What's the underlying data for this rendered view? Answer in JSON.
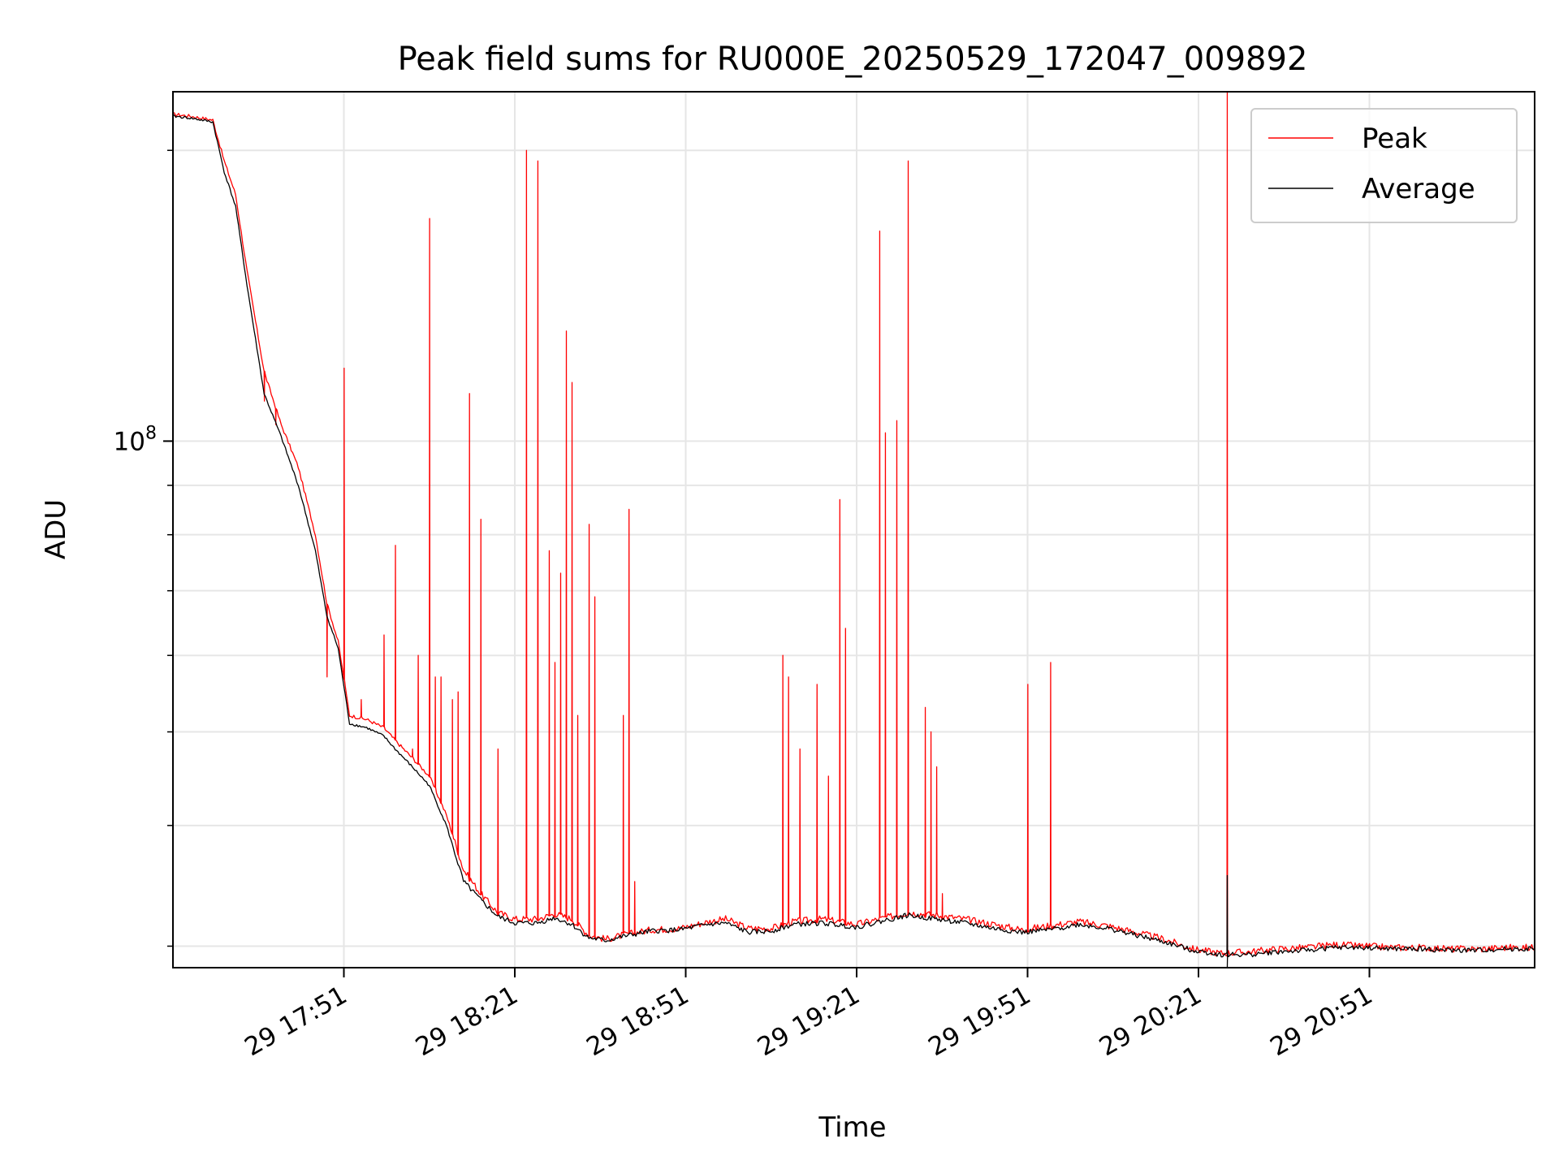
{
  "chart_data": {
    "type": "line",
    "title": "Peak field sums for RU000E_20250529_172047_009892",
    "xlabel": "Time",
    "ylabel": "ADU",
    "yscale": "log",
    "x_range": [
      "29 17:21",
      "29 21:20"
    ],
    "ylim": [
      28500000,
      230000000
    ],
    "grid": true,
    "legend_position": "upper right",
    "x_ticks": [
      "29 17:51",
      "29 18:21",
      "29 18:51",
      "29 19:21",
      "29 19:51",
      "29 20:21",
      "29 20:51"
    ],
    "y_major_tick": {
      "base": "10",
      "exponent": "8",
      "value": 100000000
    },
    "y_minor_ticks": [
      30000000,
      40000000,
      50000000,
      60000000,
      70000000,
      80000000,
      90000000,
      200000000
    ],
    "colors": {
      "peak": "#ff0000",
      "average": "#000000",
      "grid": "#e6e6e6"
    },
    "series": [
      {
        "name": "Peak",
        "color": "#ff0000",
        "baseline": [
          [
            "29 17:21",
            218000000
          ],
          [
            "29 17:24",
            217000000
          ],
          [
            "29 17:28",
            215000000
          ],
          [
            "29 17:30",
            195000000
          ],
          [
            "29 17:32",
            180000000
          ],
          [
            "29 17:34",
            150000000
          ],
          [
            "29 17:37",
            118000000
          ],
          [
            "29 17:40",
            104000000
          ],
          [
            "29 17:43",
            94000000
          ],
          [
            "29 17:46",
            80000000
          ],
          [
            "29 17:48",
            68000000
          ],
          [
            "29 17:50",
            62000000
          ],
          [
            "29 17:52",
            52000000
          ],
          [
            "29 17:55",
            51500000
          ],
          [
            "29 17:58",
            50500000
          ],
          [
            "29 18:00",
            49000000
          ],
          [
            "29 18:03",
            47000000
          ],
          [
            "29 18:06",
            45000000
          ],
          [
            "29 18:09",
            41000000
          ],
          [
            "29 18:12",
            36000000
          ],
          [
            "29 18:15",
            34000000
          ],
          [
            "29 18:18",
            32500000
          ],
          [
            "29 18:21",
            32000000
          ],
          [
            "29 18:25",
            32000000
          ],
          [
            "29 18:28",
            32400000
          ],
          [
            "29 18:31",
            32000000
          ],
          [
            "29 18:34",
            30800000
          ],
          [
            "29 18:37",
            30500000
          ],
          [
            "29 18:40",
            30800000
          ],
          [
            "29 18:45",
            31200000
          ],
          [
            "29 18:50",
            31300000
          ],
          [
            "29 18:55",
            31800000
          ],
          [
            "29 18:58",
            32000000
          ],
          [
            "29 19:02",
            31300000
          ],
          [
            "29 19:06",
            31300000
          ],
          [
            "29 19:10",
            31800000
          ],
          [
            "29 19:15",
            32000000
          ],
          [
            "29 19:21",
            31600000
          ],
          [
            "29 19:25",
            32000000
          ],
          [
            "29 19:30",
            32500000
          ],
          [
            "29 19:35",
            32300000
          ],
          [
            "29 19:40",
            32000000
          ],
          [
            "29 19:45",
            31600000
          ],
          [
            "29 19:50",
            31200000
          ],
          [
            "29 19:55",
            31500000
          ],
          [
            "29 20:00",
            31800000
          ],
          [
            "29 20:05",
            31500000
          ],
          [
            "29 20:10",
            31000000
          ],
          [
            "29 20:15",
            30500000
          ],
          [
            "29 20:20",
            29800000
          ],
          [
            "29 20:25",
            29500000
          ],
          [
            "29 20:30",
            29600000
          ],
          [
            "29 20:35",
            29800000
          ],
          [
            "29 20:40",
            29900000
          ],
          [
            "29 20:45",
            30100000
          ],
          [
            "29 20:50",
            30000000
          ],
          [
            "29 20:55",
            29900000
          ],
          [
            "29 21:00",
            29900000
          ],
          [
            "29 21:05",
            29800000
          ],
          [
            "29 21:10",
            29800000
          ],
          [
            "29 21:15",
            29900000
          ],
          [
            "29 21:20",
            29900000
          ]
        ],
        "spikes": [
          [
            "29 17:37",
            110000000
          ],
          [
            "29 17:39",
            104000000
          ],
          [
            "29 17:48",
            57000000
          ],
          [
            "29 17:51",
            119000000
          ],
          [
            "29 17:54",
            54000000
          ],
          [
            "29 17:58",
            63000000
          ],
          [
            "29 18:00",
            78000000
          ],
          [
            "29 18:03",
            48000000
          ],
          [
            "29 18:04",
            60000000
          ],
          [
            "29 18:06",
            170000000
          ],
          [
            "29 18:07",
            57000000
          ],
          [
            "29 18:08",
            57000000
          ],
          [
            "29 18:10",
            54000000
          ],
          [
            "29 18:11",
            55000000
          ],
          [
            "29 18:13",
            112000000
          ],
          [
            "29 18:15",
            83000000
          ],
          [
            "29 18:18",
            48000000
          ],
          [
            "29 18:23",
            200000000
          ],
          [
            "29 18:25",
            195000000
          ],
          [
            "29 18:27",
            77000000
          ],
          [
            "29 18:28",
            59000000
          ],
          [
            "29 18:29",
            73000000
          ],
          [
            "29 18:30",
            130000000
          ],
          [
            "29 18:31",
            115000000
          ],
          [
            "29 18:32",
            52000000
          ],
          [
            "29 18:34",
            82000000
          ],
          [
            "29 18:35",
            69000000
          ],
          [
            "29 18:40",
            52000000
          ],
          [
            "29 18:41",
            85000000
          ],
          [
            "29 18:42",
            35000000
          ],
          [
            "29 19:08",
            60000000
          ],
          [
            "29 19:09",
            57000000
          ],
          [
            "29 19:11",
            48000000
          ],
          [
            "29 19:14",
            56000000
          ],
          [
            "29 19:16",
            45000000
          ],
          [
            "29 19:18",
            87000000
          ],
          [
            "29 19:19",
            64000000
          ],
          [
            "29 19:25",
            165000000
          ],
          [
            "29 19:26",
            102000000
          ],
          [
            "29 19:28",
            105000000
          ],
          [
            "29 19:30",
            195000000
          ],
          [
            "29 19:33",
            53000000
          ],
          [
            "29 19:34",
            50000000
          ],
          [
            "29 19:35",
            46000000
          ],
          [
            "29 19:36",
            34000000
          ],
          [
            "29 19:51",
            56000000
          ],
          [
            "29 19:55",
            59000000
          ],
          [
            "29 20:26",
            230000000
          ]
        ]
      },
      {
        "name": "Average",
        "color": "#000000",
        "baseline": [
          [
            "29 17:21",
            217000000
          ],
          [
            "29 17:24",
            216000000
          ],
          [
            "29 17:28",
            214000000
          ],
          [
            "29 17:30",
            190000000
          ],
          [
            "29 17:32",
            175000000
          ],
          [
            "29 17:34",
            145000000
          ],
          [
            "29 17:37",
            112000000
          ],
          [
            "29 17:40",
            101000000
          ],
          [
            "29 17:43",
            90000000
          ],
          [
            "29 17:46",
            77000000
          ],
          [
            "29 17:48",
            66000000
          ],
          [
            "29 17:50",
            61000000
          ],
          [
            "29 17:52",
            51000000
          ],
          [
            "29 17:55",
            50500000
          ],
          [
            "29 17:58",
            49500000
          ],
          [
            "29 18:00",
            48000000
          ],
          [
            "29 18:03",
            46000000
          ],
          [
            "29 18:06",
            44000000
          ],
          [
            "29 18:09",
            40000000
          ],
          [
            "29 18:12",
            35000000
          ],
          [
            "29 18:15",
            33500000
          ],
          [
            "29 18:18",
            32200000
          ],
          [
            "29 18:21",
            31700000
          ],
          [
            "29 18:25",
            31700000
          ],
          [
            "29 18:28",
            32100000
          ],
          [
            "29 18:31",
            31600000
          ],
          [
            "29 18:34",
            30600000
          ],
          [
            "29 18:37",
            30400000
          ],
          [
            "29 18:40",
            30700000
          ],
          [
            "29 18:45",
            31100000
          ],
          [
            "29 18:50",
            31200000
          ],
          [
            "29 18:55",
            31600000
          ],
          [
            "29 18:58",
            31700000
          ],
          [
            "29 19:02",
            31000000
          ],
          [
            "29 19:06",
            31100000
          ],
          [
            "29 19:10",
            31600000
          ],
          [
            "29 19:15",
            31700000
          ],
          [
            "29 19:21",
            31400000
          ],
          [
            "29 19:25",
            31800000
          ],
          [
            "29 19:30",
            32300000
          ],
          [
            "29 19:35",
            32000000
          ],
          [
            "29 19:40",
            31700000
          ],
          [
            "29 19:45",
            31300000
          ],
          [
            "29 19:50",
            31000000
          ],
          [
            "29 19:55",
            31200000
          ],
          [
            "29 20:00",
            31600000
          ],
          [
            "29 20:05",
            31300000
          ],
          [
            "29 20:10",
            30800000
          ],
          [
            "29 20:15",
            30300000
          ],
          [
            "29 20:20",
            29700000
          ],
          [
            "29 20:25",
            29400000
          ],
          [
            "29 20:30",
            29400000
          ],
          [
            "29 20:35",
            29600000
          ],
          [
            "29 20:40",
            29700000
          ],
          [
            "29 20:45",
            29900000
          ],
          [
            "29 20:50",
            29900000
          ],
          [
            "29 20:55",
            29800000
          ],
          [
            "29 21:00",
            29800000
          ],
          [
            "29 21:05",
            29700000
          ],
          [
            "29 21:10",
            29700000
          ],
          [
            "29 21:15",
            29800000
          ],
          [
            "29 21:20",
            29800000
          ]
        ],
        "spikes": [
          [
            "29 20:26",
            35500000
          ],
          [
            "29 20:26",
            28500000
          ]
        ]
      }
    ]
  }
}
